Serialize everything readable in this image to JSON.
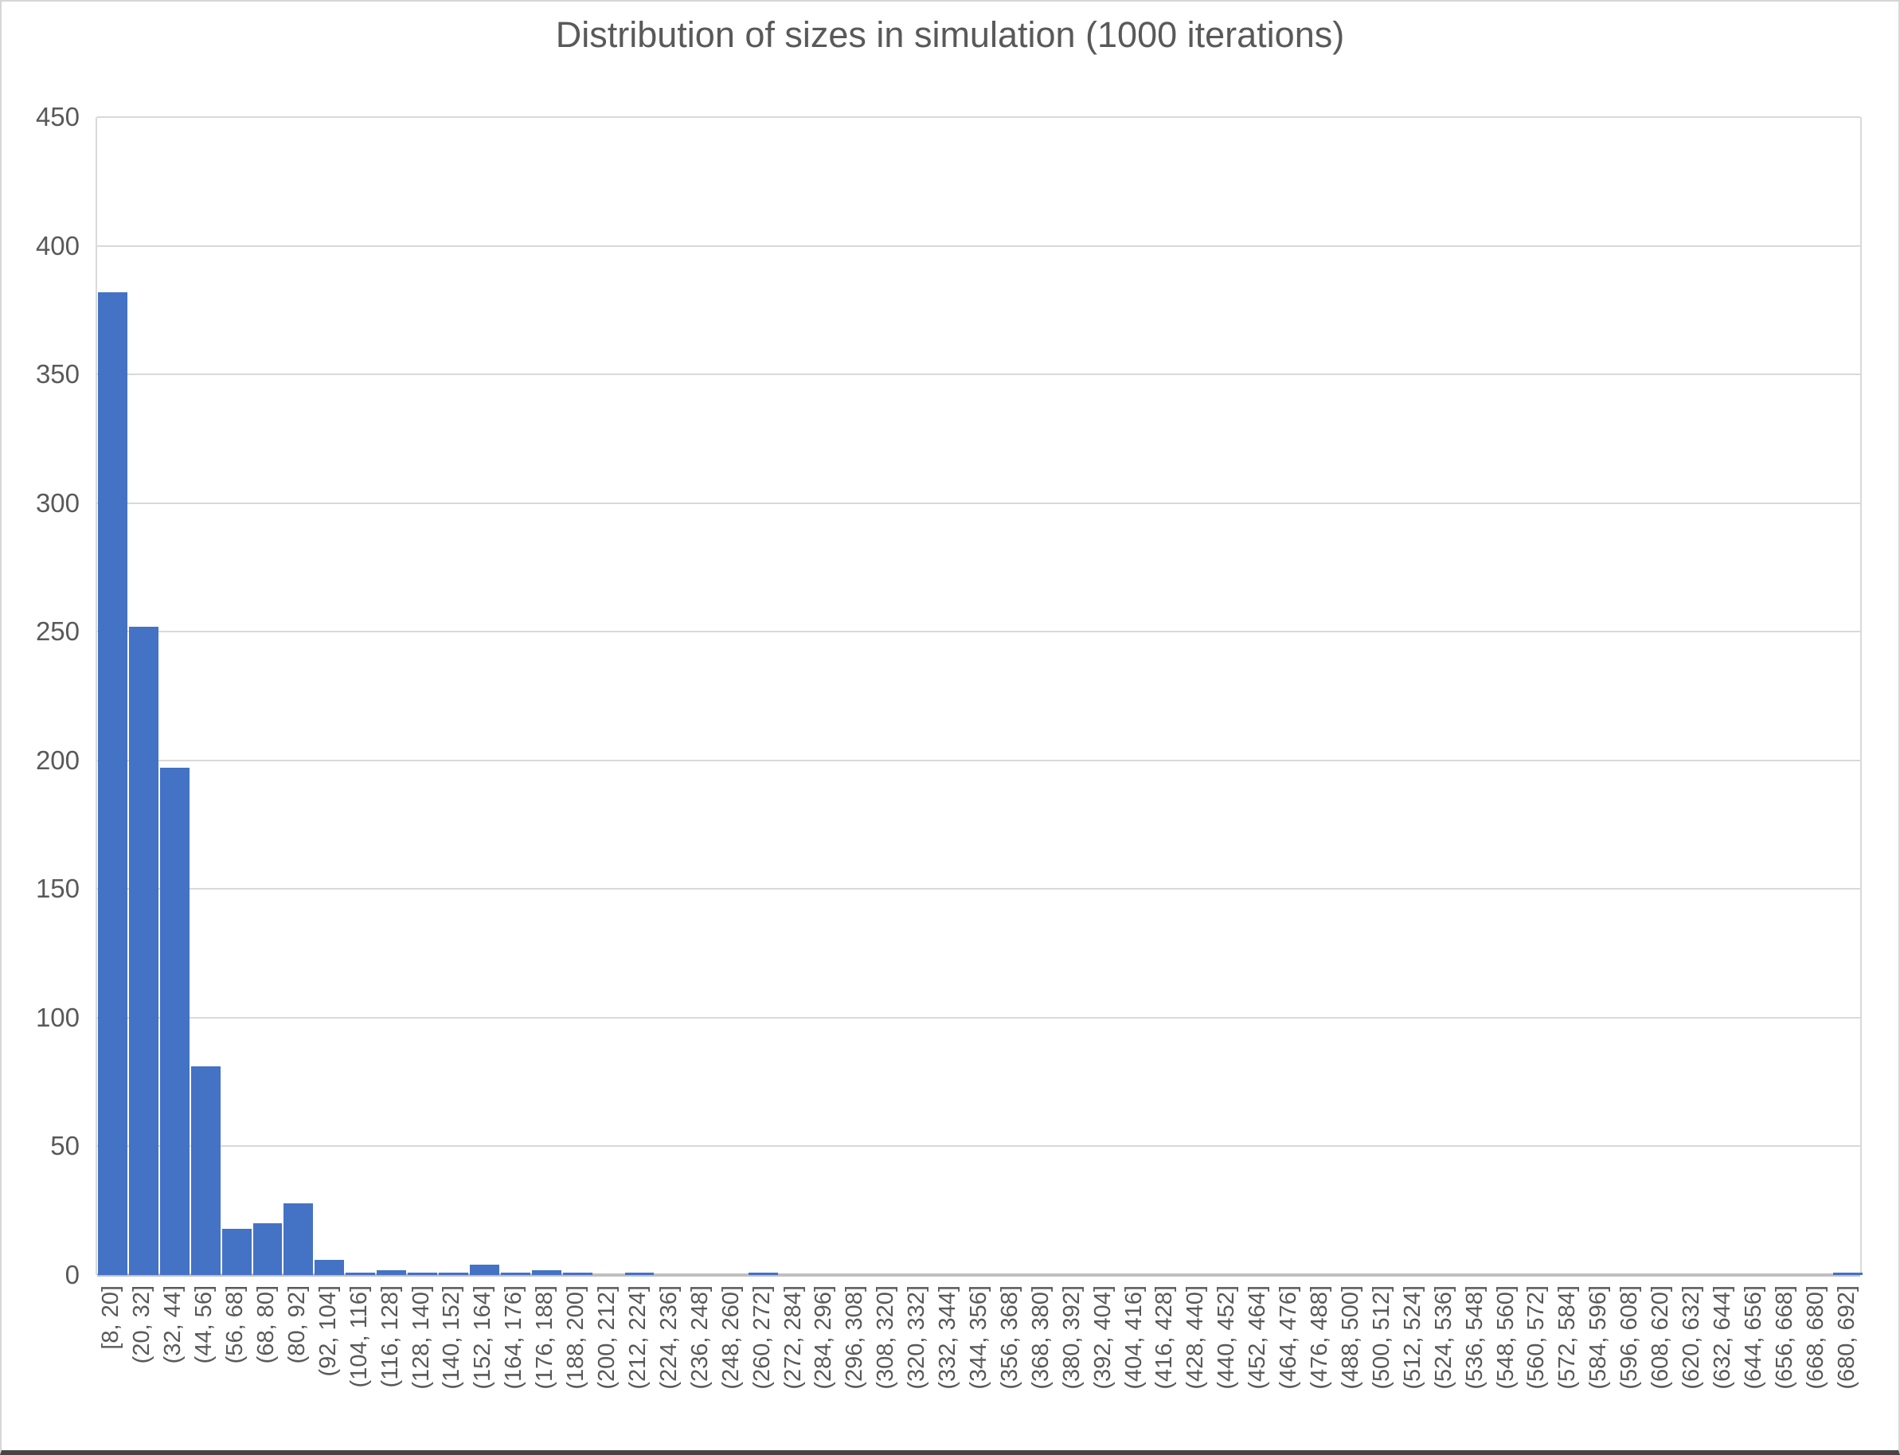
{
  "chart_data": {
    "type": "bar",
    "title": "Distribution of sizes in simulation (1000 iterations)",
    "categories": [
      "[8, 20]",
      "(20, 32]",
      "(32, 44]",
      "(44, 56]",
      "(56, 68]",
      "(68, 80]",
      "(80, 92]",
      "(92, 104]",
      "(104, 116]",
      "(116, 128]",
      "(128, 140]",
      "(140, 152]",
      "(152, 164]",
      "(164, 176]",
      "(176, 188]",
      "(188, 200]",
      "(200, 212]",
      "(212, 224]",
      "(224, 236]",
      "(236, 248]",
      "(248, 260]",
      "(260, 272]",
      "(272, 284]",
      "(284, 296]",
      "(296, 308]",
      "(308, 320]",
      "(320, 332]",
      "(332, 344]",
      "(344, 356]",
      "(356, 368]",
      "(368, 380]",
      "(380, 392]",
      "(392, 404]",
      "(404, 416]",
      "(416, 428]",
      "(428, 440]",
      "(440, 452]",
      "(452, 464]",
      "(464, 476]",
      "(476, 488]",
      "(488, 500]",
      "(500, 512]",
      "(512, 524]",
      "(524, 536]",
      "(536, 548]",
      "(548, 560]",
      "(560, 572]",
      "(572, 584]",
      "(584, 596]",
      "(596, 608]",
      "(608, 620]",
      "(620, 632]",
      "(632, 644]",
      "(644, 656]",
      "(656, 668]",
      "(668, 680]",
      "(680, 692]"
    ],
    "values": [
      382,
      252,
      197,
      81,
      18,
      20,
      28,
      6,
      1,
      2,
      1,
      1,
      4,
      1,
      2,
      1,
      0,
      1,
      0,
      0,
      0,
      1,
      0,
      0,
      0,
      0,
      0,
      0,
      0,
      0,
      0,
      0,
      0,
      0,
      0,
      0,
      0,
      0,
      0,
      0,
      0,
      0,
      0,
      0,
      0,
      0,
      0,
      0,
      0,
      0,
      0,
      0,
      0,
      0,
      0,
      0,
      1
    ],
    "xlabel": "",
    "ylabel": "",
    "ylim": [
      0,
      450
    ],
    "ytick_step": 50,
    "yticks": [
      0,
      50,
      100,
      150,
      200,
      250,
      300,
      350,
      400,
      450
    ],
    "grid": "horizontal",
    "legend": "none",
    "colors": {
      "bar": "#4472c4",
      "gridline": "#d9d9d9",
      "axis_line": "#bfbfbf",
      "text": "#595959"
    }
  }
}
